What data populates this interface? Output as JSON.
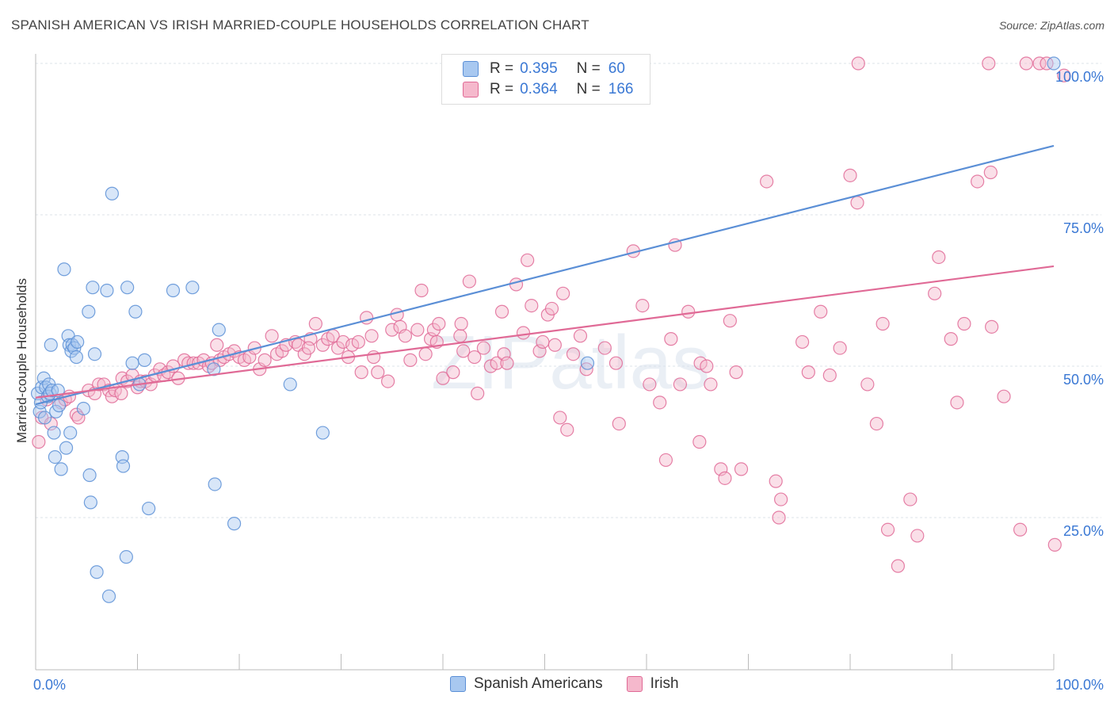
{
  "title": "SPANISH AMERICAN VS IRISH MARRIED-COUPLE HOUSEHOLDS CORRELATION CHART",
  "source": "Source: ZipAtlas.com",
  "watermark": "ZIPatlas",
  "legend": {
    "rows": [
      {
        "r_label": "R =",
        "r_value": "0.395",
        "n_label": "N =",
        "n_value": "60",
        "color": "#a8c8f0"
      },
      {
        "r_label": "R =",
        "r_value": "0.364",
        "n_label": "N =",
        "n_value": "166",
        "color": "#f5b8cc"
      }
    ]
  },
  "bottom_legend": [
    {
      "label": "Spanish Americans",
      "color": "#a8c8f0"
    },
    {
      "label": "Irish",
      "color": "#f5b8cc"
    }
  ],
  "chart_data": {
    "type": "scatter",
    "title": "SPANISH AMERICAN VS IRISH MARRIED-COUPLE HOUSEHOLDS CORRELATION CHART",
    "xlabel": "",
    "ylabel": "Married-couple Households",
    "xlim": [
      0,
      100
    ],
    "ylim": [
      0,
      102
    ],
    "x_tick_labels": [
      "0.0%",
      "100.0%"
    ],
    "y_tick_labels": [
      "25.0%",
      "50.0%",
      "75.0%",
      "100.0%"
    ],
    "y_ticks": [
      25,
      50,
      75,
      100
    ],
    "grid": true,
    "legend_position": "top-center",
    "series": [
      {
        "name": "Spanish Americans",
        "color": "#5b8fd6",
        "fill": "#a8c8f0",
        "trend": [
          [
            0,
            43.7
          ],
          [
            100,
            86.4
          ]
        ],
        "points": [
          [
            0.2,
            45.5
          ],
          [
            0.4,
            42.5
          ],
          [
            0.5,
            44
          ],
          [
            0.6,
            46.5
          ],
          [
            0.8,
            48
          ],
          [
            0.9,
            41.5
          ],
          [
            1,
            46.5
          ],
          [
            1.2,
            45
          ],
          [
            1.3,
            47
          ],
          [
            1.4,
            45.5
          ],
          [
            1.5,
            53.5
          ],
          [
            1.6,
            46
          ],
          [
            1.8,
            39
          ],
          [
            1.9,
            35
          ],
          [
            2,
            42.5
          ],
          [
            2.2,
            46
          ],
          [
            2.3,
            43.5
          ],
          [
            2.5,
            33
          ],
          [
            2.8,
            66
          ],
          [
            3,
            36.5
          ],
          [
            3.2,
            55
          ],
          [
            3.3,
            53.5
          ],
          [
            3.4,
            39
          ],
          [
            3.5,
            52.5
          ],
          [
            3.6,
            53.5
          ],
          [
            3.8,
            53
          ],
          [
            4,
            51.5
          ],
          [
            4.1,
            54
          ],
          [
            4.7,
            43
          ],
          [
            5.2,
            59
          ],
          [
            5.3,
            32
          ],
          [
            5.4,
            27.5
          ],
          [
            5.6,
            63
          ],
          [
            5.8,
            52
          ],
          [
            6,
            16
          ],
          [
            7,
            62.5
          ],
          [
            7.2,
            12
          ],
          [
            7.5,
            78.5
          ],
          [
            8.5,
            35
          ],
          [
            8.6,
            33.5
          ],
          [
            8.9,
            18.5
          ],
          [
            9,
            63
          ],
          [
            9.5,
            50.5
          ],
          [
            9.8,
            59
          ],
          [
            10.2,
            47
          ],
          [
            10.7,
            51
          ],
          [
            11.1,
            26.5
          ],
          [
            13.5,
            62.5
          ],
          [
            15.4,
            63
          ],
          [
            17.5,
            49.5
          ],
          [
            17.6,
            30.5
          ],
          [
            18,
            56
          ],
          [
            19.5,
            24
          ],
          [
            25,
            47
          ],
          [
            28.2,
            39
          ],
          [
            54.2,
            50.5
          ],
          [
            100,
            100
          ]
        ]
      },
      {
        "name": "Irish",
        "color": "#e06a96",
        "fill": "#f5b8cc",
        "trend": [
          [
            0,
            44.8
          ],
          [
            100,
            66.5
          ]
        ],
        "points": [
          [
            0.3,
            37.5
          ],
          [
            0.6,
            41.5
          ],
          [
            1.1,
            44.5
          ],
          [
            1.5,
            40.5
          ],
          [
            2.5,
            44
          ],
          [
            2.9,
            44.5
          ],
          [
            3.3,
            45
          ],
          [
            4,
            42
          ],
          [
            4.2,
            41.5
          ],
          [
            5.2,
            46
          ],
          [
            5.8,
            45.5
          ],
          [
            6.2,
            47
          ],
          [
            6.7,
            47
          ],
          [
            7.2,
            46
          ],
          [
            7.5,
            45
          ],
          [
            7.8,
            46
          ],
          [
            8.4,
            45.5
          ],
          [
            8.5,
            48
          ],
          [
            9,
            47.5
          ],
          [
            9.5,
            48.5
          ],
          [
            10,
            46.5
          ],
          [
            10.3,
            47.5
          ],
          [
            10.8,
            47.5
          ],
          [
            11.3,
            47
          ],
          [
            11.7,
            48.5
          ],
          [
            12.2,
            49.5
          ],
          [
            12.6,
            48.5
          ],
          [
            13,
            49
          ],
          [
            13.5,
            50
          ],
          [
            14,
            48
          ],
          [
            14.6,
            51
          ],
          [
            15,
            50.5
          ],
          [
            15.5,
            50.5
          ],
          [
            16,
            50.5
          ],
          [
            16.5,
            51
          ],
          [
            17,
            50
          ],
          [
            17.3,
            50.5
          ],
          [
            17.8,
            53.5
          ],
          [
            18.1,
            51
          ],
          [
            18.5,
            51.5
          ],
          [
            19,
            52
          ],
          [
            19.5,
            52.5
          ],
          [
            20,
            51.5
          ],
          [
            20.5,
            51
          ],
          [
            21,
            51.5
          ],
          [
            21.5,
            53
          ],
          [
            22,
            49.5
          ],
          [
            22.5,
            51
          ],
          [
            23.2,
            55
          ],
          [
            23.7,
            52
          ],
          [
            24.2,
            52.5
          ],
          [
            24.6,
            53.5
          ],
          [
            25.5,
            54
          ],
          [
            25.8,
            53.5
          ],
          [
            26.4,
            52
          ],
          [
            27,
            54.5
          ],
          [
            26.8,
            53
          ],
          [
            27.5,
            57
          ],
          [
            28.2,
            53.5
          ],
          [
            28.7,
            54.5
          ],
          [
            29.2,
            55
          ],
          [
            29.7,
            53
          ],
          [
            30.2,
            54
          ],
          [
            30.7,
            51.5
          ],
          [
            31.1,
            53.5
          ],
          [
            31.7,
            54
          ],
          [
            32,
            49
          ],
          [
            32.5,
            58
          ],
          [
            33,
            55
          ],
          [
            33.2,
            51.5
          ],
          [
            33.6,
            49
          ],
          [
            34.6,
            47.5
          ],
          [
            35,
            56
          ],
          [
            35.5,
            58.5
          ],
          [
            35.8,
            56.5
          ],
          [
            36.3,
            55
          ],
          [
            36.8,
            51
          ],
          [
            37.5,
            56
          ],
          [
            37.9,
            62.5
          ],
          [
            38.3,
            52
          ],
          [
            38.8,
            54.5
          ],
          [
            39.1,
            56
          ],
          [
            39.4,
            54
          ],
          [
            39.6,
            57
          ],
          [
            40,
            48
          ],
          [
            41,
            49
          ],
          [
            41.7,
            55
          ],
          [
            41.8,
            57
          ],
          [
            42,
            52.5
          ],
          [
            42.6,
            64
          ],
          [
            43.1,
            51.5
          ],
          [
            43.4,
            45.5
          ],
          [
            44,
            53
          ],
          [
            44.7,
            50
          ],
          [
            45.3,
            50.5
          ],
          [
            45.8,
            59
          ],
          [
            46,
            52
          ],
          [
            46.3,
            50.5
          ],
          [
            47.2,
            63.5
          ],
          [
            47.9,
            55.5
          ],
          [
            48.3,
            67.5
          ],
          [
            48.7,
            60
          ],
          [
            49.5,
            52.5
          ],
          [
            49.8,
            54
          ],
          [
            50.3,
            58.5
          ],
          [
            50.7,
            59.5
          ],
          [
            51,
            53.5
          ],
          [
            51.5,
            41.5
          ],
          [
            51.8,
            62
          ],
          [
            52.2,
            39.5
          ],
          [
            52.8,
            52
          ],
          [
            53.5,
            55
          ],
          [
            54.1,
            49.5
          ],
          [
            55.9,
            53
          ],
          [
            57,
            50.5
          ],
          [
            57.3,
            40.5
          ],
          [
            58.7,
            69
          ],
          [
            59.6,
            60
          ],
          [
            60.3,
            47
          ],
          [
            61.3,
            44
          ],
          [
            61.9,
            34.5
          ],
          [
            62.4,
            54.5
          ],
          [
            62.8,
            70
          ],
          [
            63.3,
            47
          ],
          [
            64.1,
            59
          ],
          [
            65.2,
            37.5
          ],
          [
            65.3,
            50.5
          ],
          [
            65.9,
            50
          ],
          [
            66.3,
            47
          ],
          [
            67.3,
            33
          ],
          [
            67.7,
            31.5
          ],
          [
            68.2,
            57.5
          ],
          [
            68.8,
            49
          ],
          [
            69.3,
            33
          ],
          [
            71.8,
            80.5
          ],
          [
            72.7,
            31
          ],
          [
            73,
            25
          ],
          [
            73.2,
            28
          ],
          [
            75.3,
            54
          ],
          [
            75.9,
            49
          ],
          [
            77.1,
            59
          ],
          [
            78,
            48.5
          ],
          [
            79,
            53
          ],
          [
            80,
            81.5
          ],
          [
            80.7,
            77
          ],
          [
            80.8,
            100
          ],
          [
            81.7,
            47
          ],
          [
            82.6,
            40.5
          ],
          [
            83.2,
            57
          ],
          [
            83.7,
            23
          ],
          [
            84.7,
            17
          ],
          [
            85.9,
            28
          ],
          [
            86.6,
            22
          ],
          [
            88.3,
            62
          ],
          [
            88.7,
            68
          ],
          [
            89.9,
            54.5
          ],
          [
            90.5,
            44
          ],
          [
            91.2,
            57
          ],
          [
            92.5,
            80.5
          ],
          [
            93.6,
            100
          ],
          [
            93.8,
            82
          ],
          [
            93.9,
            56.5
          ],
          [
            95.1,
            45
          ],
          [
            96.7,
            23
          ],
          [
            97.3,
            100
          ],
          [
            98.6,
            100
          ],
          [
            99.3,
            100
          ],
          [
            100.1,
            20.5
          ],
          [
            101,
            98
          ]
        ]
      }
    ]
  }
}
